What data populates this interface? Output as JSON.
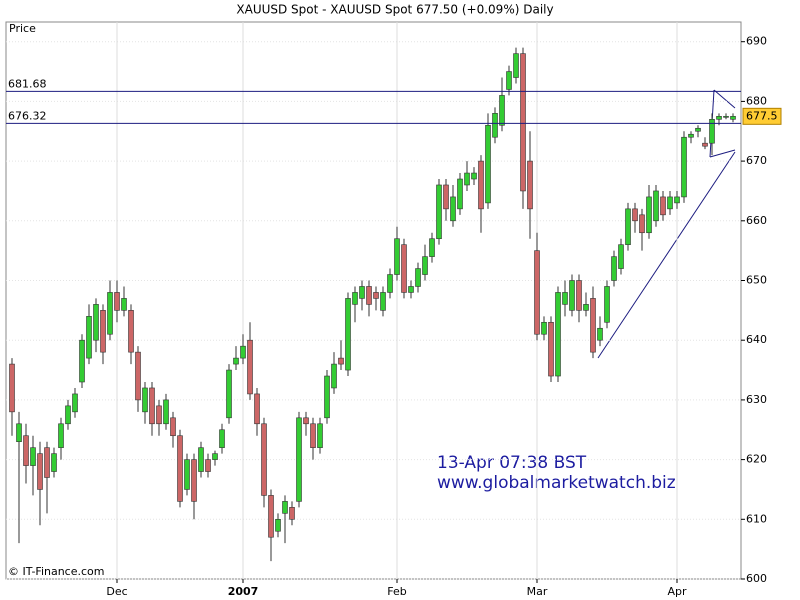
{
  "chart_data": {
    "type": "candlestick",
    "title": "XAUUSD Spot - XAUUSD Spot    677.50 (+0.09%)    Daily",
    "y_label": "Price",
    "annotations": [
      "13-Apr 07:38 BST",
      "www.globalmarketwatch.biz"
    ],
    "source": "© IT-Finance.com",
    "last_price": 677.5,
    "hlines": [
      681.68,
      676.32
    ],
    "up_color": "#33cc33",
    "down_color": "#cc6666",
    "line_color": "#1c1c80",
    "grid": true,
    "ylim": [
      600,
      693.3
    ],
    "yticks": [
      600,
      610,
      620,
      630,
      640,
      650,
      660,
      670,
      680,
      690
    ],
    "categories": [
      null,
      null,
      null,
      null,
      null,
      null,
      null,
      null,
      null,
      null,
      null,
      null,
      null,
      null,
      null,
      "Dec",
      null,
      null,
      null,
      null,
      null,
      null,
      null,
      null,
      null,
      null,
      null,
      null,
      null,
      null,
      null,
      null,
      null,
      "2007",
      null,
      null,
      null,
      null,
      null,
      null,
      null,
      null,
      null,
      null,
      null,
      null,
      null,
      null,
      null,
      null,
      null,
      null,
      null,
      null,
      null,
      "Feb",
      null,
      null,
      null,
      null,
      null,
      null,
      null,
      null,
      null,
      null,
      null,
      null,
      null,
      null,
      null,
      null,
      null,
      null,
      null,
      "Mar",
      null,
      null,
      null,
      null,
      null,
      null,
      null,
      null,
      null,
      null,
      null,
      null,
      null,
      null,
      null,
      null,
      null,
      null,
      null,
      "Apr",
      null,
      null,
      null,
      null,
      null,
      null,
      null,
      null
    ],
    "open": [
      636,
      623,
      624,
      619,
      621,
      622,
      618,
      622,
      626,
      628,
      633,
      637,
      640,
      645,
      641,
      648,
      645,
      645,
      638,
      628,
      632,
      629,
      626,
      627,
      624,
      615,
      620,
      618,
      620,
      620,
      622,
      627,
      636,
      637,
      640,
      631,
      626,
      614,
      608,
      611,
      612,
      613,
      627,
      626,
      622,
      627,
      632,
      637,
      635,
      646,
      647,
      649,
      648,
      645,
      648,
      651,
      656,
      648,
      649,
      651,
      654,
      657,
      666,
      660,
      662,
      666,
      667,
      670,
      663,
      674,
      676,
      682,
      684,
      688,
      670,
      655,
      641,
      643,
      634,
      646,
      645,
      650,
      645,
      647,
      640,
      643,
      650,
      652,
      656,
      662,
      661,
      658,
      660,
      664,
      662,
      663,
      664,
      674,
      675,
      673,
      673,
      677,
      677.5,
      677
    ],
    "high": [
      637,
      628,
      626,
      624,
      623,
      623,
      622,
      627,
      630,
      632,
      641,
      646,
      647,
      646,
      650,
      650,
      649,
      646,
      639,
      633,
      633,
      630,
      631,
      628,
      625,
      621,
      621,
      623,
      621,
      621.5,
      626,
      636,
      639,
      641,
      643,
      632,
      627,
      615,
      611,
      614,
      613,
      628,
      628,
      627,
      627,
      635,
      638,
      640,
      648,
      649,
      650,
      650,
      649,
      649,
      652,
      659,
      657,
      650,
      653,
      656,
      658,
      667,
      667,
      666,
      668,
      670,
      669,
      671,
      678,
      679,
      684,
      686,
      689,
      689,
      675,
      658,
      644,
      644,
      649,
      650,
      651,
      651,
      648,
      649,
      644,
      650,
      655,
      657,
      663,
      663,
      662,
      666,
      666,
      665,
      665,
      665,
      675,
      675,
      676,
      674,
      678,
      678,
      678,
      678
    ],
    "low": [
      624,
      606,
      616,
      614,
      609,
      611,
      617,
      620,
      625,
      627,
      632,
      636,
      638,
      636,
      640,
      643,
      644,
      636,
      628,
      626,
      624,
      624,
      625,
      622,
      612,
      614,
      610,
      617,
      617,
      619,
      621,
      626,
      635,
      636,
      630,
      624,
      612,
      603,
      607,
      606,
      609,
      612,
      624,
      620,
      621,
      626,
      631,
      635,
      634,
      643,
      645,
      644,
      645,
      644,
      647,
      650,
      647,
      647,
      648,
      650,
      653,
      656,
      660,
      659,
      661,
      665,
      666,
      658,
      662,
      673,
      675,
      681,
      683,
      662,
      657,
      640,
      640,
      633,
      633,
      644,
      644,
      643,
      644,
      637,
      639,
      642,
      649,
      651,
      655,
      658,
      655,
      657,
      659,
      660,
      661,
      662,
      663,
      673,
      674,
      672,
      671,
      676,
      677,
      676.5
    ],
    "close": [
      628,
      626,
      619,
      622,
      615,
      617,
      621,
      626,
      629,
      631,
      640,
      644,
      646,
      638,
      648,
      645,
      647,
      638,
      630,
      632,
      626,
      626,
      630,
      624,
      613,
      620,
      613,
      622,
      618,
      621,
      625,
      635,
      637,
      639,
      631,
      626,
      614,
      607,
      610,
      613,
      610,
      627,
      626,
      622,
      626,
      634,
      636,
      636,
      647,
      648,
      649,
      646,
      647,
      648,
      651,
      657,
      648,
      649,
      652,
      654,
      657,
      666,
      662,
      664,
      667,
      668,
      668,
      662,
      676,
      678,
      681,
      685,
      688,
      665,
      662,
      641,
      643,
      634,
      648,
      648,
      650,
      645,
      646,
      638,
      642,
      649,
      654,
      656,
      662,
      660,
      658,
      664,
      665,
      661,
      664,
      664,
      674,
      674.5,
      675.5,
      672.5,
      677,
      677.5,
      677.5,
      677.5
    ]
  }
}
